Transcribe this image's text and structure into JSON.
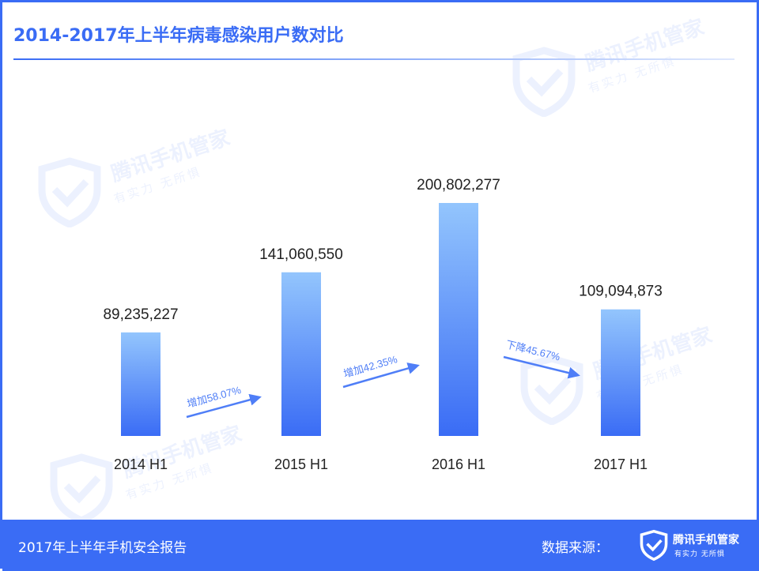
{
  "title": "2014-2017年上半年病毒感染用户数对比",
  "footer": {
    "report_name": "2017年上半年手机安全报告",
    "source_label": "数据来源：",
    "logo_name": "腾讯手机管家",
    "logo_slogan": "有实力 无所惧"
  },
  "watermark": {
    "name": "腾讯手机管家",
    "slogan": "有实力 无所惧"
  },
  "colors": {
    "accent": "#3a6cf5",
    "bar_top": "#93c5fd",
    "bar_bottom": "#3a6cf5",
    "arrow": "#4f7ef7"
  },
  "chart_data": {
    "type": "bar",
    "categories": [
      "2014 H1",
      "2015 H1",
      "2016 H1",
      "2017 H1"
    ],
    "values": [
      89235227,
      141060550,
      200802277,
      109094873
    ],
    "value_labels": [
      "89,235,227",
      "141,060,550",
      "200,802,277",
      "109,094,873"
    ],
    "ylim": [
      0,
      200802277
    ],
    "axis_visible": false,
    "grid": false,
    "annotations": [
      {
        "text": "增加58.07%",
        "from": "2014 H1",
        "to": "2015 H1",
        "direction": "up"
      },
      {
        "text": "增加42.35%",
        "from": "2015 H1",
        "to": "2016 H1",
        "direction": "up"
      },
      {
        "text": "下降45.67%",
        "from": "2016 H1",
        "to": "2017 H1",
        "direction": "down"
      }
    ]
  }
}
